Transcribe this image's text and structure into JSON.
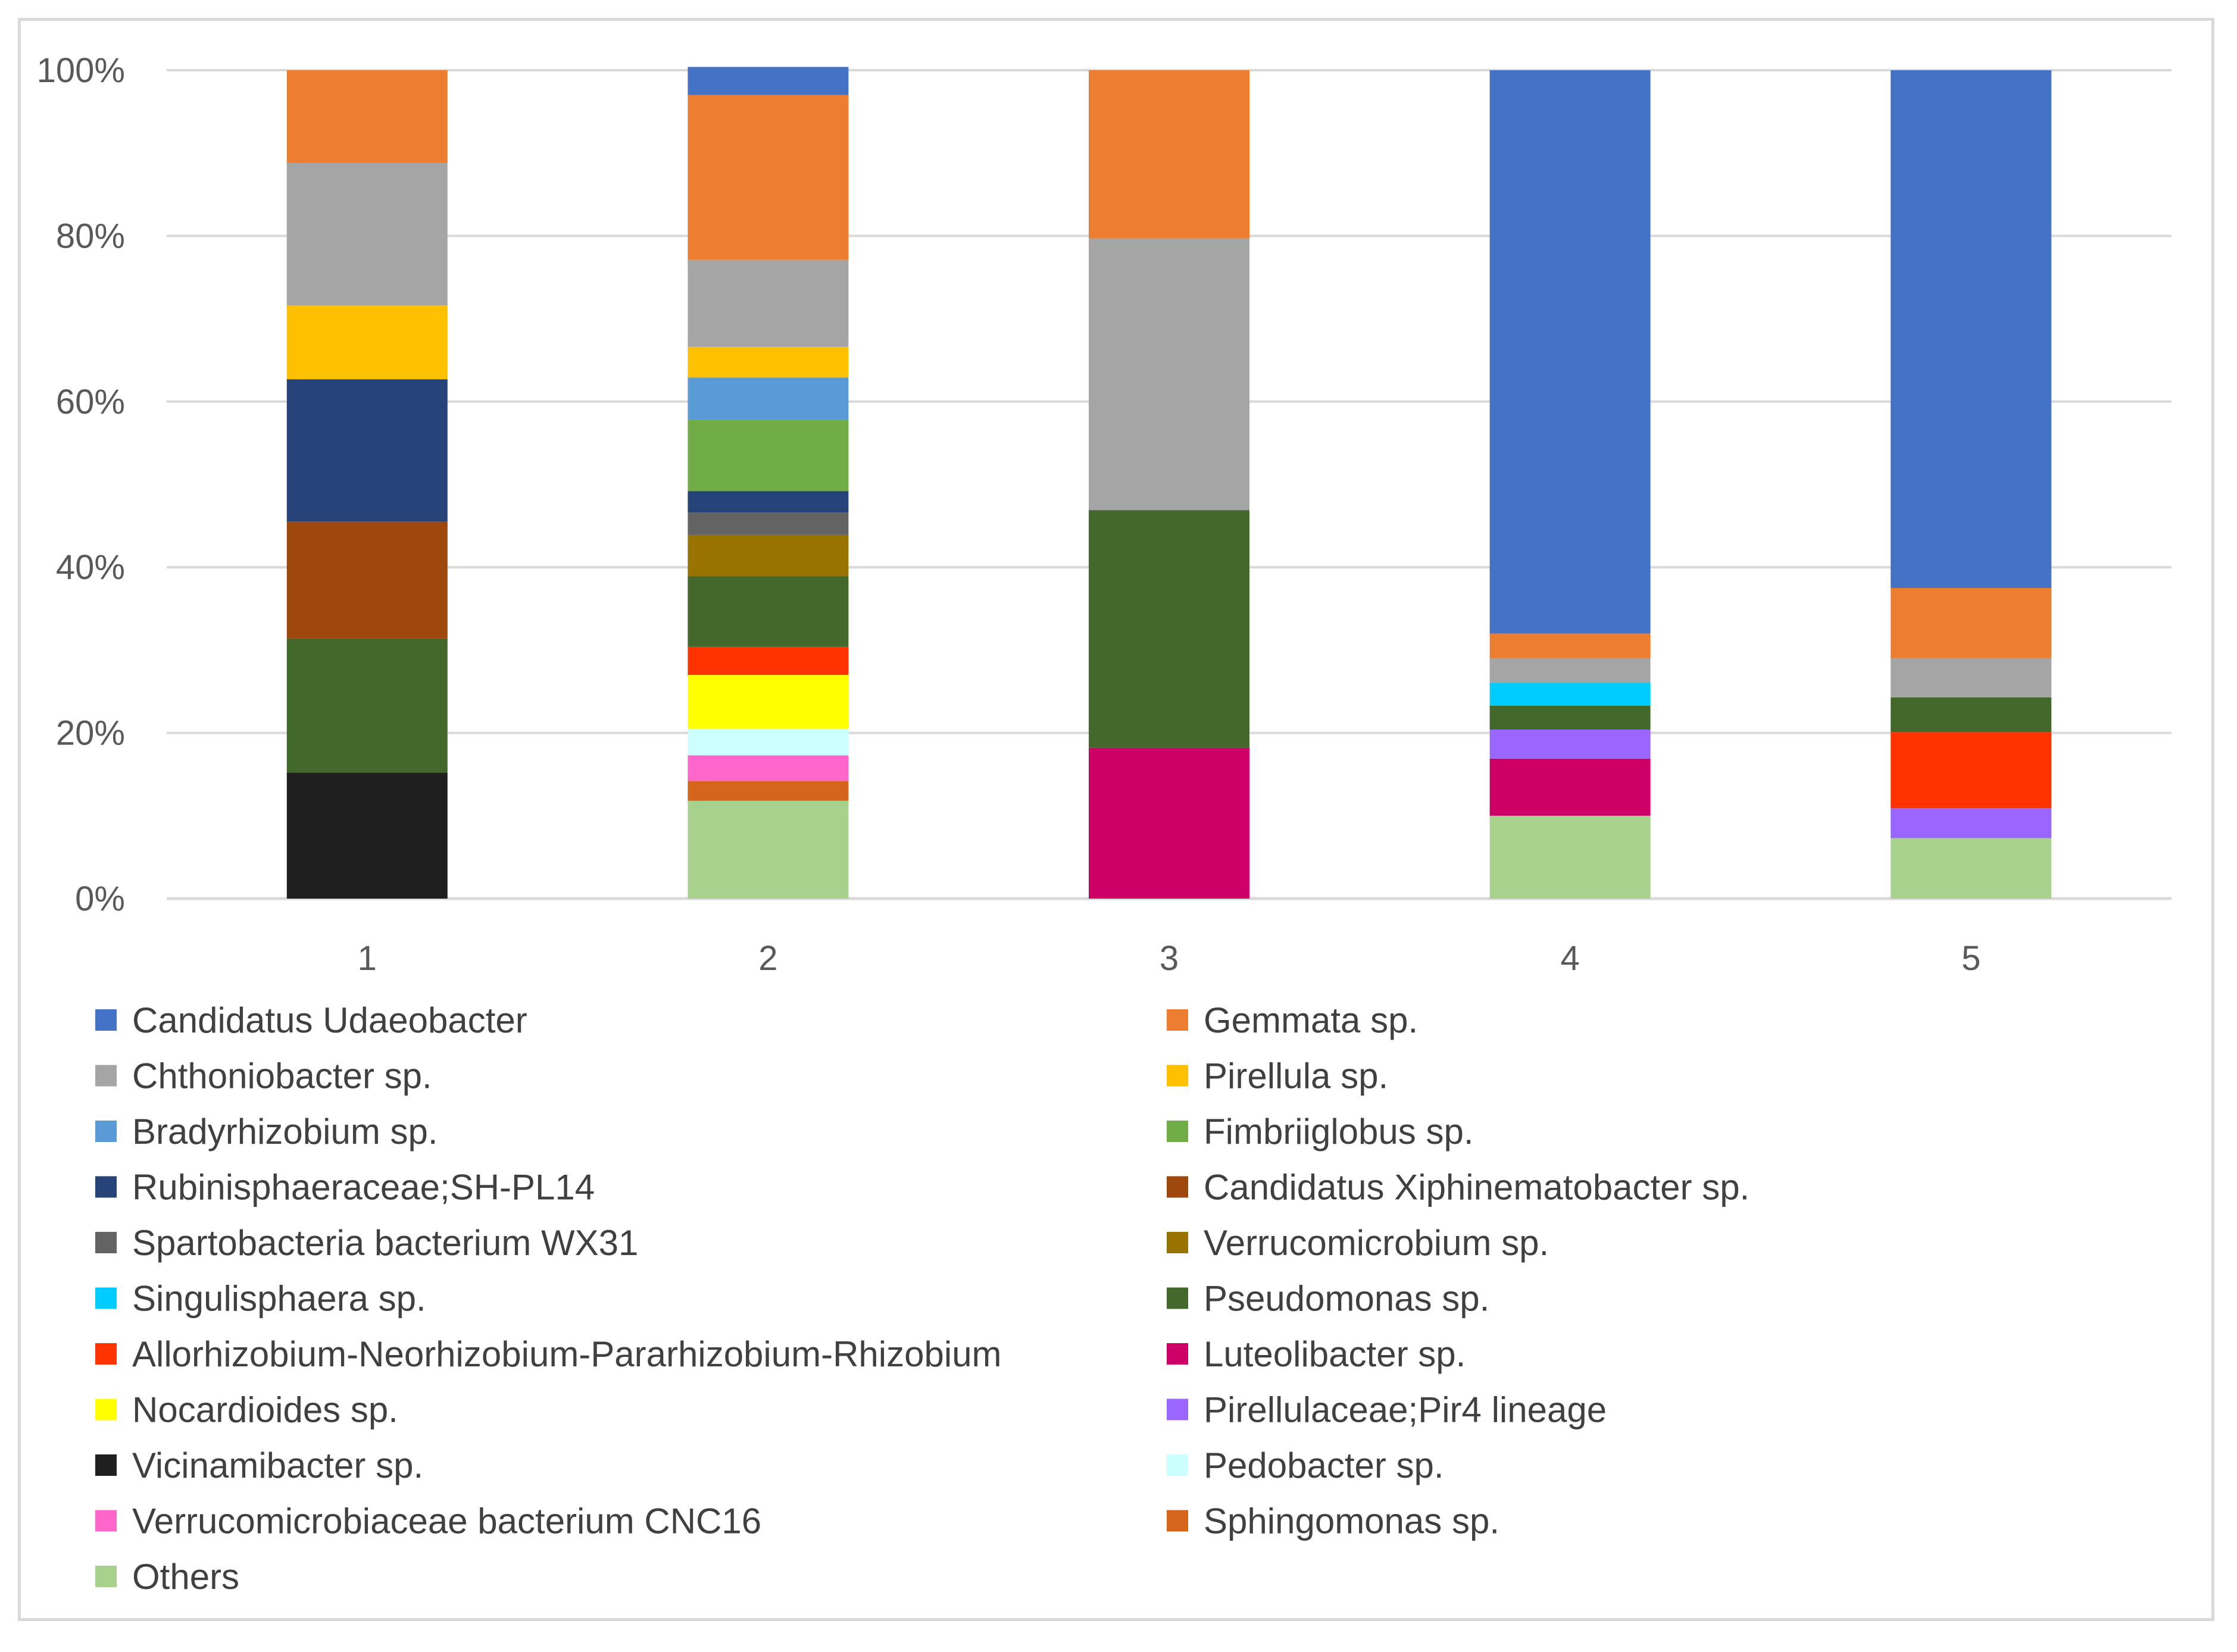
{
  "chart_data": {
    "type": "bar",
    "stacked": true,
    "percent": true,
    "title": "",
    "xlabel": "",
    "ylabel": "",
    "ylim": [
      0,
      100
    ],
    "yticks": [
      "0%",
      "20%",
      "40%",
      "60%",
      "80%",
      "100%"
    ],
    "categories": [
      "1",
      "2",
      "3",
      "4",
      "5"
    ],
    "legend_position": "bottom",
    "series": [
      {
        "name": "Candidatus Udaeobacter",
        "color": "#4472C4",
        "values": [
          0,
          3.4,
          0,
          68,
          62.5
        ]
      },
      {
        "name": "Gemmata sp.",
        "color": "#ED7D31",
        "values": [
          11.2,
          19.9,
          20.3,
          3,
          8.5
        ]
      },
      {
        "name": "Chthoniobacter sp.",
        "color": "#A5A5A5",
        "values": [
          17.2,
          10.5,
          32.8,
          2.9,
          4.7
        ]
      },
      {
        "name": "Pirellula sp.",
        "color": "#FFC000",
        "values": [
          8.9,
          3.7,
          0,
          0,
          0
        ]
      },
      {
        "name": "Bradyrhizobium sp.",
        "color": "#5B9BD5",
        "values": [
          0,
          5.1,
          0,
          0,
          0
        ]
      },
      {
        "name": "Fimbriiglobus sp.",
        "color": "#70AD47",
        "values": [
          0,
          8.6,
          0,
          0,
          0
        ]
      },
      {
        "name": "Rubinisphaeraceae;SH-PL14",
        "color": "#264478",
        "values": [
          17.2,
          2.6,
          0,
          0,
          0
        ]
      },
      {
        "name": "Candidatus Xiphinematobacter sp.",
        "color": "#9E480E",
        "values": [
          14.1,
          0,
          0,
          0,
          0
        ]
      },
      {
        "name": "Spartobacteria bacterium WX31",
        "color": "#636363",
        "values": [
          0,
          2.7,
          0,
          0,
          0
        ]
      },
      {
        "name": "Verrucomicrobium sp.",
        "color": "#997300",
        "values": [
          0,
          5,
          0,
          0,
          0
        ]
      },
      {
        "name": "Singulisphaera sp.",
        "color": "#00CCFF",
        "values": [
          0,
          0,
          0,
          2.8,
          0
        ]
      },
      {
        "name": "Pseudomonas sp.",
        "color": "#43682B",
        "values": [
          16.2,
          8.5,
          28.7,
          2.9,
          4.2
        ]
      },
      {
        "name": "Allorhizobium-Neorhizobium-Pararhizobium-Rhizobium",
        "color": "#FF3300",
        "values": [
          0,
          3.4,
          0,
          0,
          9.2
        ]
      },
      {
        "name": "Luteolibacter sp.",
        "color": "#CC0066",
        "values": [
          0,
          0,
          18.2,
          6.9,
          0
        ]
      },
      {
        "name": "Nocardioides sp.",
        "color": "#FFFF00",
        "values": [
          0,
          6.5,
          0,
          0,
          0
        ]
      },
      {
        "name": "Pirellulaceae;Pir4 lineage",
        "color": "#9966FF",
        "values": [
          0,
          0,
          0,
          3.5,
          3.6
        ]
      },
      {
        "name": "Vicinamibacter sp.",
        "color": "#1F1F1F",
        "values": [
          15.2,
          0,
          0,
          0,
          0
        ]
      },
      {
        "name": "Pedobacter sp.",
        "color": "#CCFFFF",
        "values": [
          0,
          3.2,
          0,
          0,
          0
        ]
      },
      {
        "name": "Verrucomicrobiaceae bacterium CNC16",
        "color": "#FF66CC",
        "values": [
          0,
          3.1,
          0,
          0,
          0
        ]
      },
      {
        "name": "Sphingomonas sp.",
        "color": "#D4651A",
        "values": [
          0,
          2.4,
          0,
          0,
          0
        ]
      },
      {
        "name": "Others",
        "color": "#A9D18E",
        "values": [
          0,
          11.8,
          0,
          10,
          7.3
        ]
      }
    ],
    "stack_order_bottom_to_top": [
      "Vicinamibacter sp.",
      "Others",
      "Luteolibacter sp.",
      "Pirellulaceae;Pir4 lineage",
      "Sphingomonas sp.",
      "Verrucomicrobiaceae bacterium CNC16",
      "Pedobacter sp.",
      "Nocardioides sp.",
      "Allorhizobium-Neorhizobium-Pararhizobium-Rhizobium",
      "Pseudomonas sp.",
      "Singulisphaera sp.",
      "Candidatus Xiphinematobacter sp.",
      "Verrucomicrobium sp.",
      "Spartobacteria bacterium WX31",
      "Rubinisphaeraceae;SH-PL14",
      "Fimbriiglobus sp.",
      "Bradyrhizobium sp.",
      "Pirellula sp.",
      "Chthoniobacter sp.",
      "Gemmata sp.",
      "Candidatus Udaeobacter"
    ]
  },
  "colors": {
    "gridline": "#D9D9D9",
    "axis": "#D9D9D9",
    "tick_text": "#595959",
    "legend_text": "#404040"
  }
}
